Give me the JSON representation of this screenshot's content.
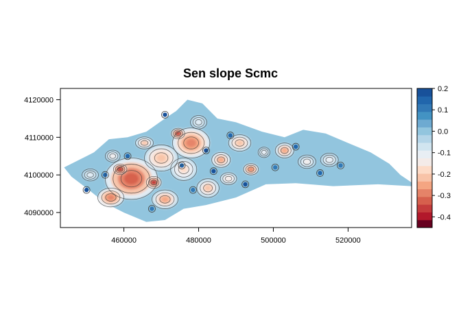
{
  "chart_data": {
    "type": "heatmap",
    "title": "Sen slope Scmc",
    "xlabel": "",
    "ylabel": "",
    "xlim": [
      443000,
      537000
    ],
    "ylim": [
      4086000,
      4123000
    ],
    "x_ticks": [
      460000,
      480000,
      500000,
      520000
    ],
    "x_tick_labels": [
      "460000",
      "480000",
      "500000",
      "520000"
    ],
    "y_ticks": [
      4090000,
      4100000,
      4110000,
      4120000
    ],
    "y_tick_labels": [
      "4090000",
      "4100000",
      "4110000",
      "4120000"
    ],
    "colorbar": {
      "range": [
        -0.45,
        0.2
      ],
      "ticks": [
        0.2,
        0.1,
        0.0,
        -0.1,
        -0.2,
        -0.3,
        -0.4
      ],
      "tick_labels": [
        "0.2",
        "0.1",
        "0.0",
        "-0.1",
        "-0.2",
        "-0.3",
        "-0.4"
      ],
      "colors": [
        "#67001f",
        "#b2182b",
        "#c43c3c",
        "#d6604d",
        "#e58368",
        "#f4a582",
        "#f8c3a8",
        "#fddbc7",
        "#f4ebe8",
        "#e8eef4",
        "#d1e5f0",
        "#b4d5e8",
        "#92c5de",
        "#6eaad1",
        "#4393c3",
        "#3279b6",
        "#2166ac",
        "#18519a"
      ]
    },
    "background_value": 0.0,
    "region_outline": [
      [
        444000,
        4102000
      ],
      [
        447000,
        4103500
      ],
      [
        452000,
        4106000
      ],
      [
        456000,
        4109500
      ],
      [
        461000,
        4110000
      ],
      [
        466000,
        4111500
      ],
      [
        471000,
        4115000
      ],
      [
        474000,
        4117000
      ],
      [
        477000,
        4120000
      ],
      [
        481000,
        4119000
      ],
      [
        485000,
        4115000
      ],
      [
        490000,
        4114000
      ],
      [
        497000,
        4111500
      ],
      [
        503000,
        4110000
      ],
      [
        508000,
        4112000
      ],
      [
        514000,
        4111000
      ],
      [
        520000,
        4108500
      ],
      [
        526000,
        4106000
      ],
      [
        531000,
        4103000
      ],
      [
        534000,
        4100000
      ],
      [
        537000,
        4098000
      ],
      [
        537000,
        4097000
      ],
      [
        528000,
        4097500
      ],
      [
        516000,
        4097000
      ],
      [
        506000,
        4097800
      ],
      [
        498000,
        4097500
      ],
      [
        490000,
        4094000
      ],
      [
        482000,
        4092000
      ],
      [
        476000,
        4091000
      ],
      [
        471000,
        4088000
      ],
      [
        466000,
        4087500
      ],
      [
        460000,
        4090000
      ],
      [
        455000,
        4092500
      ],
      [
        450000,
        4096500
      ],
      [
        446000,
        4099500
      ]
    ],
    "negative_patches": [
      {
        "x": 462000,
        "y": 4099000,
        "rx": 7000,
        "ry": 5500,
        "value": -0.34
      },
      {
        "x": 456500,
        "y": 4094000,
        "rx": 3500,
        "ry": 2500,
        "value": -0.28
      },
      {
        "x": 470000,
        "y": 4104500,
        "rx": 4500,
        "ry": 3500,
        "value": -0.22
      },
      {
        "x": 478000,
        "y": 4108500,
        "rx": 5000,
        "ry": 4000,
        "value": -0.3
      },
      {
        "x": 476000,
        "y": 4101500,
        "rx": 3500,
        "ry": 3000,
        "value": -0.18
      },
      {
        "x": 471000,
        "y": 4093500,
        "rx": 3500,
        "ry": 2500,
        "value": -0.24
      },
      {
        "x": 482500,
        "y": 4096500,
        "rx": 3000,
        "ry": 2500,
        "value": -0.2
      },
      {
        "x": 486000,
        "y": 4104000,
        "rx": 2500,
        "ry": 2000,
        "value": -0.26
      },
      {
        "x": 491000,
        "y": 4108500,
        "rx": 3000,
        "ry": 2200,
        "value": -0.22
      },
      {
        "x": 488000,
        "y": 4099000,
        "rx": 2200,
        "ry": 1600,
        "value": -0.16
      },
      {
        "x": 494000,
        "y": 4101500,
        "rx": 2000,
        "ry": 1500,
        "value": -0.3
      },
      {
        "x": 503000,
        "y": 4106500,
        "rx": 2500,
        "ry": 2000,
        "value": -0.24
      },
      {
        "x": 497500,
        "y": 4106000,
        "rx": 1600,
        "ry": 1400,
        "value": -0.12
      },
      {
        "x": 509000,
        "y": 4103500,
        "rx": 2400,
        "ry": 1800,
        "value": -0.14
      },
      {
        "x": 515000,
        "y": 4104000,
        "rx": 2400,
        "ry": 1800,
        "value": -0.12
      },
      {
        "x": 465500,
        "y": 4108500,
        "rx": 2400,
        "ry": 1600,
        "value": -0.2
      },
      {
        "x": 451000,
        "y": 4100000,
        "rx": 2200,
        "ry": 1600,
        "value": -0.1
      },
      {
        "x": 457000,
        "y": 4105000,
        "rx": 2000,
        "ry": 1600,
        "value": -0.14
      },
      {
        "x": 480000,
        "y": 4114000,
        "rx": 2200,
        "ry": 1800,
        "value": -0.1
      },
      {
        "x": 468000,
        "y": 4098000,
        "rx": 2000,
        "ry": 1600,
        "value": -0.38
      },
      {
        "x": 459000,
        "y": 4101500,
        "rx": 1800,
        "ry": 1400,
        "value": -0.4
      },
      {
        "x": 474500,
        "y": 4111000,
        "rx": 1800,
        "ry": 1400,
        "value": -0.36
      }
    ],
    "positive_spots": [
      {
        "x": 450000,
        "y": 4096000,
        "value": 0.18
      },
      {
        "x": 461000,
        "y": 4105000,
        "value": 0.16
      },
      {
        "x": 475500,
        "y": 4102500,
        "value": 0.14
      },
      {
        "x": 484000,
        "y": 4101000,
        "value": 0.2
      },
      {
        "x": 478500,
        "y": 4096000,
        "value": 0.12
      },
      {
        "x": 488500,
        "y": 4110500,
        "value": 0.15
      },
      {
        "x": 492500,
        "y": 4097500,
        "value": 0.18
      },
      {
        "x": 500500,
        "y": 4102000,
        "value": 0.12
      },
      {
        "x": 506000,
        "y": 4107500,
        "value": 0.16
      },
      {
        "x": 512500,
        "y": 4100500,
        "value": 0.14
      },
      {
        "x": 518000,
        "y": 4102500,
        "value": 0.12
      },
      {
        "x": 471000,
        "y": 4116000,
        "value": 0.2
      },
      {
        "x": 455000,
        "y": 4100000,
        "value": 0.14
      },
      {
        "x": 467500,
        "y": 4091000,
        "value": 0.1
      },
      {
        "x": 482000,
        "y": 4106500,
        "value": 0.18
      }
    ]
  }
}
